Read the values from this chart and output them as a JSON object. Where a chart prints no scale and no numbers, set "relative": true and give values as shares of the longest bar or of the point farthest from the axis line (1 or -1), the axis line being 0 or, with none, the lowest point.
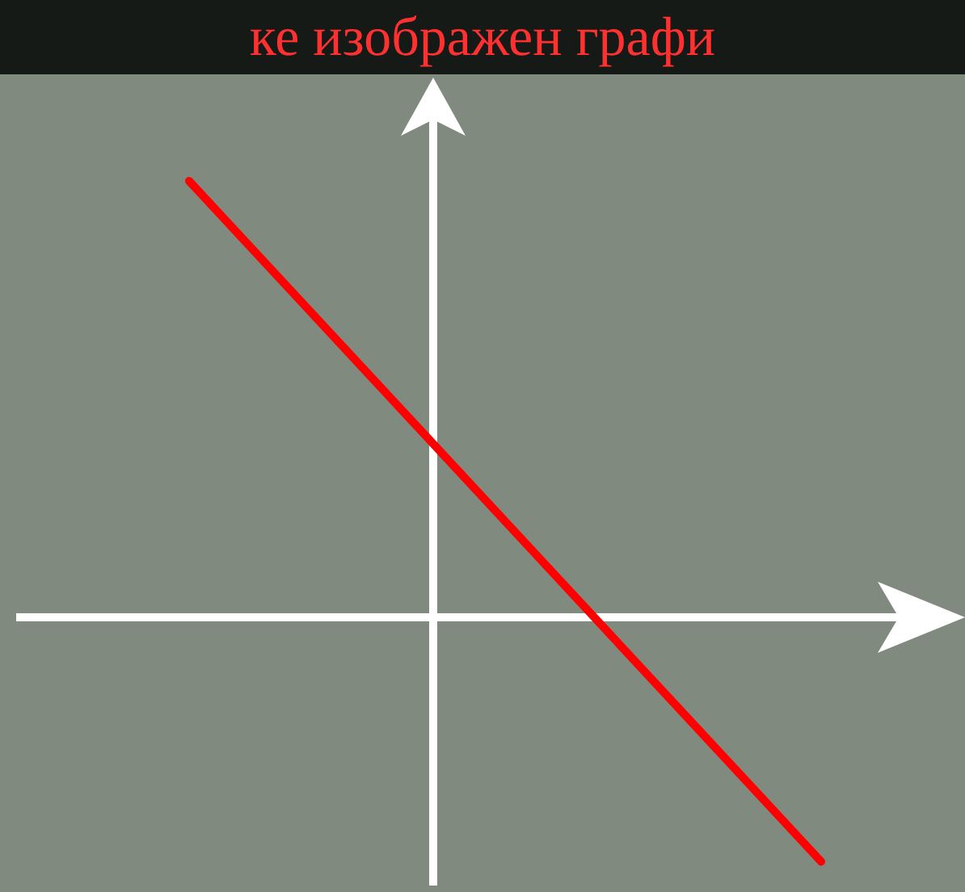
{
  "chart_data": {
    "type": "line",
    "title": "ке изображен графи",
    "relative": true,
    "categories": [
      null,
      null
    ],
    "series": [
      {
        "color": "#ff0000",
        "values": [
          1,
          -0.56
        ]
      }
    ]
  }
}
